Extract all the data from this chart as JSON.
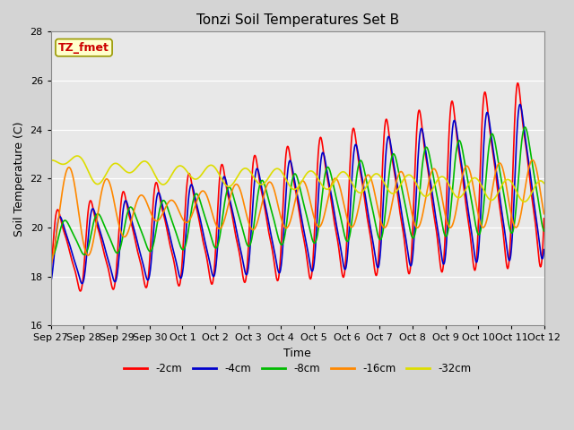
{
  "title": "Tonzi Soil Temperatures Set B",
  "xlabel": "Time",
  "ylabel": "Soil Temperature (C)",
  "ylim": [
    16,
    28
  ],
  "annotation_text": "TZ_fmet",
  "annotation_color": "#cc0000",
  "annotation_bg": "#ffffcc",
  "annotation_border": "#999900",
  "fig_facecolor": "#d4d4d4",
  "ax_facecolor": "#e8e8e8",
  "legend_labels": [
    "-2cm",
    "-4cm",
    "-8cm",
    "-16cm",
    "-32cm"
  ],
  "line_colors": [
    "#ff0000",
    "#0000cc",
    "#00bb00",
    "#ff8800",
    "#dddd00"
  ],
  "line_widths": [
    1.2,
    1.2,
    1.2,
    1.2,
    1.2
  ],
  "xtick_labels": [
    "Sep 27",
    "Sep 28",
    "Sep 29",
    "Sep 30",
    "Oct 1",
    "Oct 2",
    "Oct 3",
    "Oct 4",
    "Oct 5",
    "Oct 6",
    "Oct 7",
    "Oct 8",
    "Oct 9",
    "Oct 10",
    "Oct 11",
    "Oct 12"
  ],
  "num_days": 15,
  "samples_per_day": 96
}
